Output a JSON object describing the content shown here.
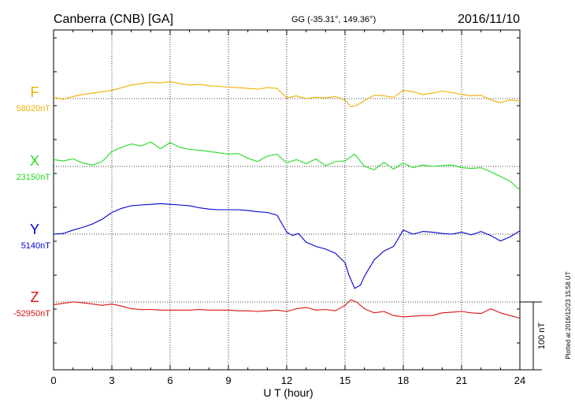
{
  "header": {
    "station": "Canberra (CNB)  [GA]",
    "coords": "GG (-35.31°, 149.36°)",
    "date": "2016/11/10"
  },
  "footer": {
    "plotted": "Plotted at 2016/12/23 15:58 UT"
  },
  "scale_bar": {
    "label": "100 nT"
  },
  "chart_data": {
    "type": "line",
    "title": "Canberra (CNB)  [GA]",
    "xlabel": "U T (hour)",
    "xlim": [
      0,
      24
    ],
    "x_ticks": [
      0,
      3,
      6,
      9,
      12,
      15,
      18,
      21,
      24
    ],
    "x_tick_labels": [
      "0",
      "3",
      "6",
      "9",
      "12",
      "15",
      "18",
      "21",
      "24"
    ],
    "grid": true,
    "series": [
      {
        "name": "F",
        "baseline_label": "58020nT",
        "baseline_nT": 58020,
        "color": "#f0b000",
        "x": [
          0,
          0.5,
          1,
          1.5,
          2,
          2.5,
          3,
          3.5,
          4,
          4.5,
          5,
          5.5,
          6,
          6.5,
          7,
          7.5,
          8,
          8.5,
          9,
          9.5,
          10,
          10.5,
          11,
          11.5,
          12,
          12.5,
          13,
          13.5,
          14,
          14.5,
          15,
          15.3,
          15.6,
          16,
          16.5,
          17,
          17.5,
          18,
          18.5,
          19,
          19.5,
          20,
          20.5,
          21,
          21.5,
          22,
          22.5,
          23,
          23.5,
          24
        ],
        "values": [
          58022,
          58019,
          58023,
          58026,
          58028,
          58030,
          58032,
          58036,
          58040,
          58042,
          58044,
          58043,
          58045,
          58042,
          58040,
          58041,
          58039,
          58038,
          58037,
          58036,
          58035,
          58034,
          58036,
          58035,
          58021,
          58024,
          58020,
          58022,
          58021,
          58023,
          58018,
          58008,
          58010,
          58017,
          58025,
          58024,
          58022,
          58032,
          58030,
          58026,
          58028,
          58031,
          58029,
          58026,
          58024,
          58025,
          58018,
          58014,
          58018,
          58016
        ]
      },
      {
        "name": "X",
        "baseline_label": "23150nT",
        "baseline_nT": 23150,
        "color": "#22dd22",
        "x": [
          0,
          0.5,
          1,
          1.5,
          2,
          2.5,
          3,
          3.5,
          4,
          4.5,
          5,
          5.5,
          6,
          6.5,
          7,
          7.5,
          8,
          8.5,
          9,
          9.5,
          10,
          10.5,
          11,
          11.5,
          12,
          12.5,
          13,
          13.5,
          14,
          14.5,
          15,
          15.5,
          16,
          16.5,
          17,
          17.5,
          18,
          18.5,
          19,
          19.5,
          20,
          20.5,
          21,
          21.5,
          22,
          22.5,
          23,
          23.5,
          24
        ],
        "values": [
          23160,
          23158,
          23161,
          23155,
          23152,
          23157,
          23172,
          23178,
          23183,
          23180,
          23186,
          23176,
          23185,
          23178,
          23175,
          23174,
          23172,
          23170,
          23168,
          23169,
          23162,
          23157,
          23165,
          23168,
          23155,
          23160,
          23154,
          23161,
          23151,
          23157,
          23158,
          23168,
          23150,
          23145,
          23156,
          23146,
          23155,
          23148,
          23152,
          23150,
          23151,
          23152,
          23148,
          23147,
          23148,
          23142,
          23135,
          23128,
          23115
        ]
      },
      {
        "name": "Y",
        "baseline_label": "5140nT",
        "baseline_nT": 5140,
        "color": "#0000cc",
        "x": [
          0,
          0.5,
          1,
          1.5,
          2,
          2.5,
          3,
          3.5,
          4,
          4.5,
          5,
          5.5,
          6,
          6.5,
          7,
          7.5,
          8,
          8.5,
          9,
          9.5,
          10,
          10.5,
          11,
          11.5,
          12,
          12.3,
          12.6,
          13,
          13.5,
          14,
          14.5,
          15,
          15.2,
          15.5,
          15.8,
          16,
          16.5,
          17,
          17.5,
          18,
          18.5,
          19,
          19.5,
          20,
          20.5,
          21,
          21.5,
          22,
          22.5,
          23,
          23.5,
          24
        ],
        "values": [
          5140,
          5141,
          5146,
          5150,
          5155,
          5162,
          5172,
          5178,
          5182,
          5183,
          5184,
          5185,
          5184,
          5183,
          5182,
          5179,
          5177,
          5176,
          5176,
          5176,
          5175,
          5173,
          5172,
          5168,
          5143,
          5138,
          5141,
          5128,
          5122,
          5118,
          5112,
          5098,
          5080,
          5060,
          5065,
          5078,
          5102,
          5115,
          5122,
          5146,
          5140,
          5144,
          5143,
          5141,
          5140,
          5143,
          5139,
          5144,
          5138,
          5130,
          5136,
          5145
        ]
      },
      {
        "name": "Z",
        "baseline_label": "-52950nT",
        "baseline_nT": -52950,
        "color": "#dd1111",
        "x": [
          0,
          0.5,
          1,
          1.5,
          2,
          2.5,
          3,
          3.5,
          4,
          4.5,
          5,
          5.5,
          6,
          6.5,
          7,
          7.5,
          8,
          8.5,
          9,
          9.5,
          10,
          10.5,
          11,
          11.5,
          12,
          12.5,
          13,
          13.5,
          14,
          14.5,
          15,
          15.3,
          15.6,
          16,
          16.5,
          17,
          17.5,
          18,
          18.5,
          19,
          19.5,
          20,
          20.5,
          21,
          21.5,
          22,
          22.5,
          23,
          23.5,
          24
        ],
        "values": [
          -52954,
          -52952,
          -52950,
          -52951,
          -52953,
          -52955,
          -52953,
          -52956,
          -52960,
          -52961,
          -52961,
          -52962,
          -52962,
          -52962,
          -52962,
          -52961,
          -52962,
          -52962,
          -52962,
          -52963,
          -52963,
          -52964,
          -52963,
          -52962,
          -52964,
          -52960,
          -52958,
          -52962,
          -52961,
          -52963,
          -52955,
          -52947,
          -52950,
          -52960,
          -52966,
          -52964,
          -52970,
          -52972,
          -52971,
          -52970,
          -52970,
          -52966,
          -52965,
          -52964,
          -52966,
          -52967,
          -52960,
          -52966,
          -52970,
          -52974
        ]
      }
    ]
  }
}
